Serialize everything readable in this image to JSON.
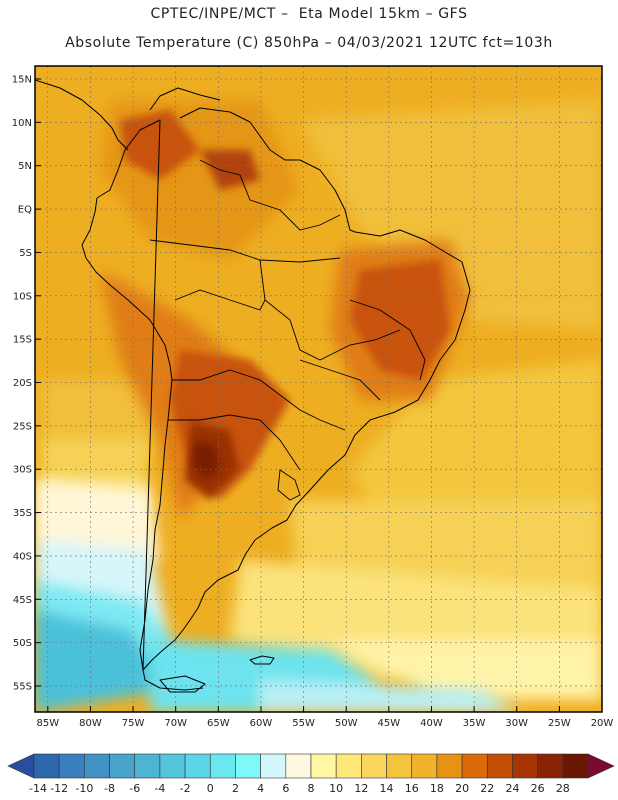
{
  "header": {
    "line1": "CPTEC/INPE/MCT –  Eta Model 15km – GFS",
    "line2": "Absolute Temperature (C) 850hPa – 04/03/2021 12UTC fct=103h"
  },
  "map": {
    "lat_labels": [
      "15N",
      "10N",
      "5N",
      "EQ",
      "5S",
      "10S",
      "15S",
      "20S",
      "25S",
      "30S",
      "35S",
      "40S",
      "45S",
      "50S",
      "55S"
    ],
    "lat_values": [
      15,
      10,
      5,
      0,
      -5,
      -10,
      -15,
      -20,
      -25,
      -30,
      -35,
      -40,
      -45,
      -50,
      -55
    ],
    "lon_labels": [
      "85W",
      "80W",
      "75W",
      "70W",
      "65W",
      "60W",
      "55W",
      "50W",
      "45W",
      "40W",
      "35W",
      "30W",
      "25W",
      "20W"
    ],
    "lon_values": [
      -85,
      -80,
      -75,
      -70,
      -65,
      -60,
      -55,
      -50,
      -45,
      -40,
      -35,
      -30,
      -25,
      -20
    ],
    "lat_range": [
      -58,
      16.5
    ],
    "lon_range": [
      -86.5,
      -20
    ],
    "field": "Absolute Temperature (C) at 850hPa",
    "colors": {
      "ocean_warm": "#eeae22",
      "frame": "#000000",
      "coast": "#000000",
      "grid": "#6f6f6f"
    }
  },
  "colorbar": {
    "labels": [
      "-14",
      "-12",
      "-10",
      "-8",
      "-6",
      "-4",
      "-2",
      "0",
      "2",
      "4",
      "6",
      "8",
      "10",
      "12",
      "14",
      "16",
      "18",
      "20",
      "22",
      "24",
      "26",
      "28"
    ],
    "colors": [
      "#2a4da0",
      "#2f67ad",
      "#3a7fbd",
      "#4392c6",
      "#48a4cb",
      "#4db4d2",
      "#53c5dc",
      "#5bd6e6",
      "#6ae8f0",
      "#80f8f8",
      "#d3f7fb",
      "#fff8e1",
      "#fff7a3",
      "#ffe77a",
      "#fbd65e",
      "#f3c43c",
      "#efb22a",
      "#e69314",
      "#db6a0a",
      "#c44e06",
      "#a83504",
      "#882404",
      "#6a1602",
      "#7a0830"
    ]
  }
}
